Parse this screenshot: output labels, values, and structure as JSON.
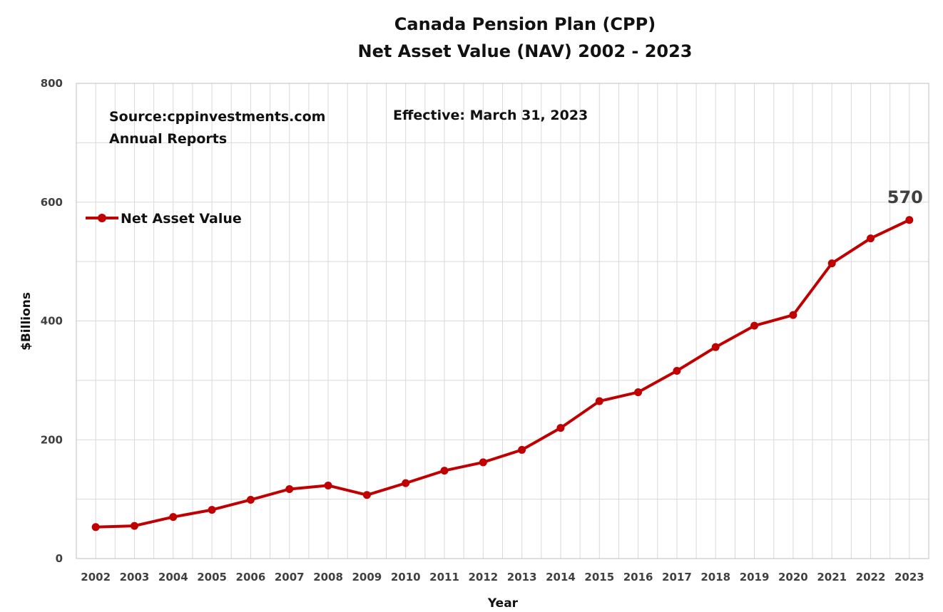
{
  "chart_data": {
    "type": "line",
    "title_line1": "Canada Pension Plan (CPP)",
    "title_line2": "Net Asset Value (NAV) 2002 - 2023",
    "xlabel": "Year",
    "ylabel": "$Billions",
    "ylim": [
      0,
      800
    ],
    "yticks": [
      0,
      200,
      400,
      600,
      800
    ],
    "grid": true,
    "legend_position": "top-left",
    "x": [
      "2002",
      "2003",
      "2004",
      "2005",
      "2006",
      "2007",
      "2008",
      "2009",
      "2010",
      "2011",
      "2012",
      "2013",
      "2014",
      "2015",
      "2016",
      "2017",
      "2018",
      "2019",
      "2020",
      "2021",
      "2022",
      "2023"
    ],
    "series": [
      {
        "name": "Net Asset Value",
        "color": "#C00000",
        "values": [
          53,
          55,
          70,
          82,
          99,
          117,
          123,
          107,
          127,
          148,
          162,
          183,
          220,
          265,
          280,
          316,
          356,
          392,
          410,
          497,
          539,
          570
        ]
      }
    ],
    "annotations": {
      "source_line1": "Source:cppinvestments.com",
      "source_line2": "Annual Reports",
      "effective": "Effective: March 31, 2023",
      "last_value_label": "570"
    }
  }
}
